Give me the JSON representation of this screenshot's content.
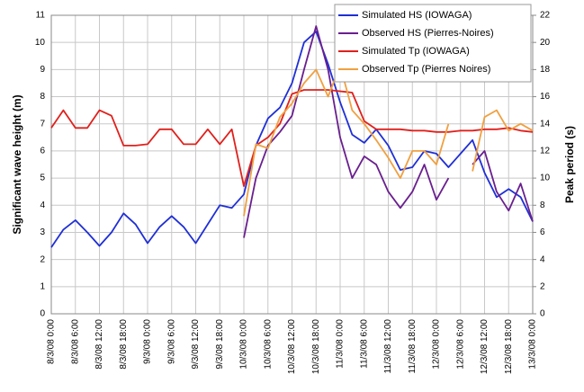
{
  "chart_data": {
    "type": "line",
    "y_label": "Significant wave height (m)",
    "y2_label": "Peak period (s)",
    "categories": [
      "8/3/08 0:00",
      null,
      "8/3/08 6:00",
      null,
      "8/3/08 12:00",
      null,
      "8/3/08 18:00",
      null,
      "9/3/08 0:00",
      null,
      "9/3/08 6:00",
      null,
      "9/3/08 12:00",
      null,
      "9/3/08 18:00",
      null,
      "10/3/08 0:00",
      null,
      "10/3/08 6:00",
      null,
      "10/3/08 12:00",
      null,
      "10/3/08 18:00",
      null,
      "11/3/08 0:00",
      null,
      "11/3/08 6:00",
      null,
      "11/3/08 12:00",
      null,
      "11/3/08 18:00",
      null,
      "12/3/08 0:00",
      null,
      "12/3/08 6:00",
      null,
      "12/3/08 12:00",
      null,
      "12/3/08 18:00",
      null,
      "13/3/08 0:00"
    ],
    "ylim": [
      0,
      11
    ],
    "yticks": [
      0,
      1,
      2,
      3,
      4,
      5,
      6,
      7,
      8,
      9,
      10,
      11
    ],
    "y2lim": [
      0,
      22
    ],
    "y2ticks": [
      0,
      2,
      4,
      6,
      8,
      10,
      12,
      14,
      16,
      18,
      20,
      22
    ],
    "grid": true,
    "legend": "top-right",
    "series": [
      {
        "name": "Simulated HS (IOWAGA)",
        "color": "#1f2fd6",
        "axis": "y",
        "values": [
          2.45,
          3.1,
          3.45,
          3.0,
          2.5,
          3.0,
          3.7,
          3.3,
          2.6,
          3.2,
          3.6,
          3.2,
          2.6,
          3.3,
          4.0,
          3.9,
          4.4,
          6.2,
          7.2,
          7.6,
          8.5,
          10.0,
          10.4,
          9.2,
          7.8,
          6.6,
          6.3,
          6.8,
          6.2,
          5.3,
          5.4,
          6.0,
          5.9,
          5.4,
          5.9,
          6.4,
          5.2,
          4.3,
          4.6,
          4.3,
          3.4
        ]
      },
      {
        "name": "Observed HS (Pierres-Noires)",
        "color": "#6a1f8f",
        "axis": "y",
        "values": [
          null,
          null,
          null,
          null,
          null,
          null,
          null,
          null,
          null,
          null,
          null,
          null,
          null,
          null,
          null,
          null,
          2.8,
          5.0,
          6.2,
          6.7,
          7.3,
          9.0,
          10.6,
          9.0,
          6.5,
          5.0,
          5.8,
          5.5,
          4.5,
          3.9,
          4.5,
          5.5,
          4.2,
          5.0,
          null,
          5.5,
          6.0,
          4.5,
          3.8,
          4.8,
          3.4
        ]
      },
      {
        "name": "Simulated Tp (IOWAGA)",
        "color": "#e0201c",
        "axis": "y2",
        "values": [
          13.7,
          15.0,
          13.7,
          13.7,
          15.0,
          14.6,
          12.4,
          12.4,
          12.5,
          13.6,
          13.6,
          12.5,
          12.5,
          13.6,
          12.5,
          13.6,
          9.4,
          12.4,
          13.0,
          14.0,
          16.2,
          16.5,
          16.5,
          16.5,
          16.4,
          16.3,
          14.2,
          13.6,
          13.6,
          13.6,
          13.5,
          13.5,
          13.4,
          13.4,
          13.5,
          13.5,
          13.6,
          13.6,
          13.7,
          13.5,
          13.4
        ]
      },
      {
        "name": "Observed Tp (Pierres Noires)",
        "color": "#f0a040",
        "axis": "y2",
        "values": [
          null,
          null,
          null,
          null,
          null,
          null,
          null,
          null,
          null,
          null,
          null,
          null,
          null,
          null,
          null,
          null,
          7.2,
          12.5,
          12.2,
          14.5,
          15.5,
          17.0,
          18.0,
          16.0,
          18.3,
          15.0,
          14.0,
          12.8,
          11.5,
          10.0,
          12.0,
          12.0,
          11.0,
          14.0,
          null,
          10.5,
          14.5,
          15.0,
          13.5,
          14.0,
          13.5
        ]
      }
    ]
  }
}
